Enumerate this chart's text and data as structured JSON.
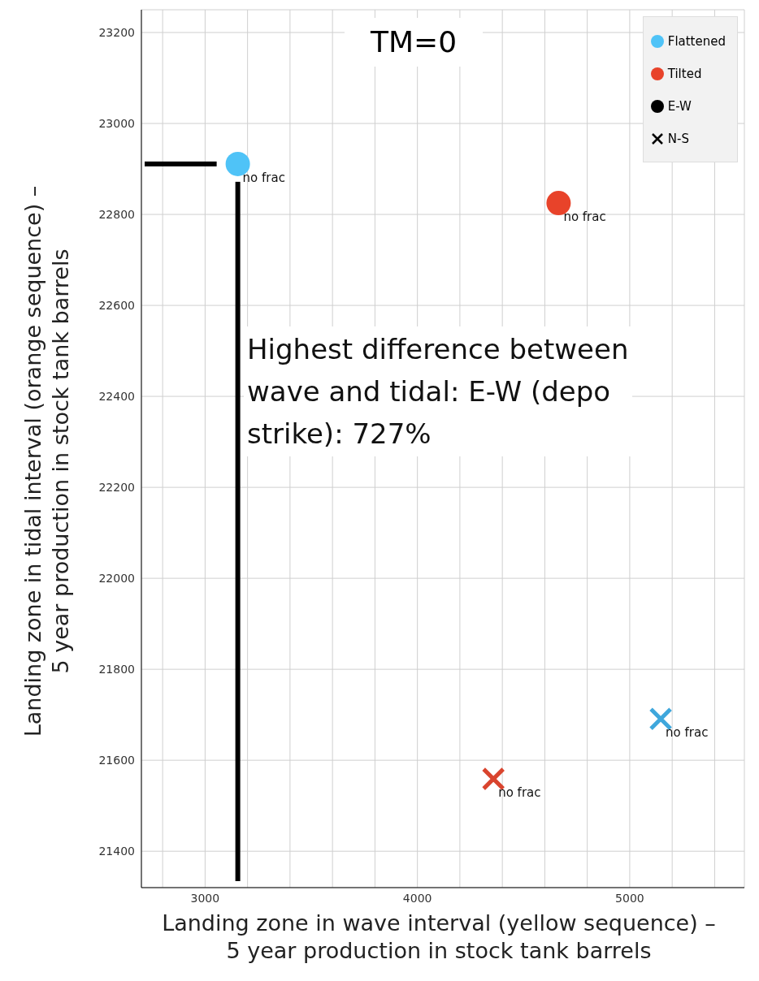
{
  "chart_data": {
    "type": "scatter",
    "title": "TM=0",
    "xlabel": "Landing zone in wave interval (yellow sequence) –\n5 year production in stock tank barrels",
    "ylabel": "Landing zone in tidal interval (orange sequence) –\n5 year production in stock tank barrels",
    "xlim": [
      2700,
      5540
    ],
    "ylim": [
      21320,
      23250
    ],
    "xticks": [
      {
        "value": 2800,
        "label": null
      },
      3000,
      {
        "value": 3200,
        "label": null
      },
      {
        "value": 3400,
        "label": null
      },
      {
        "value": 3600,
        "label": null
      },
      {
        "value": 3800,
        "label": null
      },
      4000,
      {
        "value": 4200,
        "label": null
      },
      {
        "value": 4400,
        "label": null
      },
      {
        "value": 4600,
        "label": null
      },
      {
        "value": 4800,
        "label": null
      },
      5000,
      {
        "value": 5200,
        "label": null
      },
      {
        "value": 5400,
        "label": null
      }
    ],
    "yticks": [
      21400,
      21600,
      21800,
      22000,
      22200,
      22400,
      22600,
      22800,
      23000,
      23200
    ],
    "grid": true,
    "legend": "top right",
    "series": [
      {
        "name": "Flattened",
        "color": "#4fc3f7",
        "marker": "circle",
        "x": [
          3154
        ],
        "values": [
          22911
        ],
        "value_labels": [
          "no frac"
        ]
      },
      {
        "name": "Tilted",
        "color": "#e8432a",
        "marker": "circle",
        "x": [
          4665
        ],
        "values": [
          22825
        ],
        "value_labels": [
          "no frac"
        ]
      },
      {
        "color": "#3fa7dc",
        "marker": "cross",
        "x": [
          5146
        ],
        "values": [
          21691
        ],
        "value_labels": [
          "no frac"
        ]
      },
      {
        "color": "#d9442e",
        "marker": "cross",
        "x": [
          4358
        ],
        "values": [
          21559
        ],
        "value_labels": [
          "no frac"
        ]
      },
      {
        "name": "E-W",
        "color": "#000000",
        "marker": "circle"
      },
      {
        "name": "N-S",
        "color": "#000000",
        "marker": "cross"
      }
    ],
    "annotations": [
      "Highest difference between wave and tidal: E-W (depo strike): 727%"
    ]
  }
}
